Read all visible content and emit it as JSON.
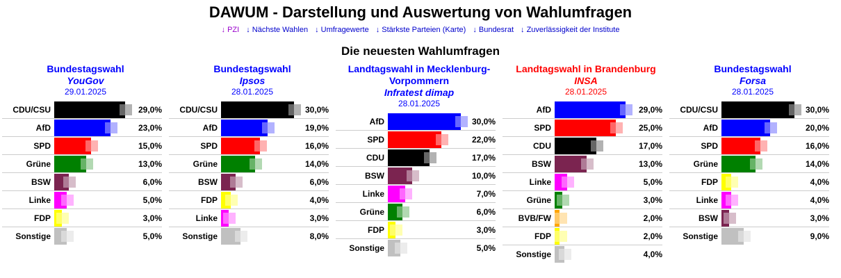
{
  "title": "DAWUM - Darstellung und Auswertung von Wahlumfragen",
  "nav": [
    {
      "label": "↓ PZI",
      "visited": true
    },
    {
      "label": "↓ Nächste Wahlen"
    },
    {
      "label": "↓ Umfragewerte"
    },
    {
      "label": "↓ Stärkste Parteien (Karte)"
    },
    {
      "label": "↓ Bundesrat"
    },
    {
      "label": "↓ Zuverlässigkeit der Institute"
    }
  ],
  "section_title": "Die neuesten Wahlumfragen",
  "colors": {
    "CDU/CSU": "#000000",
    "CDU": "#000000",
    "AfD": "#0000ff",
    "SPD": "#ff0000",
    "Grüne": "#008000",
    "BSW": "#7b2450",
    "Linke": "#ff00ff",
    "FDP": "#ffff00",
    "BVB/FW": "#ffa500",
    "Sonstige": "#c0c0c0"
  },
  "polls": [
    {
      "title": "Bundestagswahl",
      "institute": "YouGov",
      "date": "29.01.2025",
      "color": "blue",
      "rows": [
        [
          "CDU/CSU",
          29,
          "29,0%"
        ],
        [
          "AfD",
          23,
          "23,0%"
        ],
        [
          "SPD",
          15,
          "15,0%"
        ],
        [
          "Grüne",
          13,
          "13,0%"
        ],
        [
          "BSW",
          6,
          "6,0%"
        ],
        [
          "Linke",
          5,
          "5,0%"
        ],
        [
          "FDP",
          3,
          "3,0%"
        ],
        [
          "Sonstige",
          5,
          "5,0%"
        ]
      ]
    },
    {
      "title": "Bundestagswahl",
      "institute": "Ipsos",
      "date": "28.01.2025",
      "color": "blue",
      "rows": [
        [
          "CDU/CSU",
          30,
          "30,0%"
        ],
        [
          "AfD",
          19,
          "19,0%"
        ],
        [
          "SPD",
          16,
          "16,0%"
        ],
        [
          "Grüne",
          14,
          "14,0%"
        ],
        [
          "BSW",
          6,
          "6,0%"
        ],
        [
          "FDP",
          4,
          "4,0%"
        ],
        [
          "Linke",
          3,
          "3,0%"
        ],
        [
          "Sonstige",
          8,
          "8,0%"
        ]
      ]
    },
    {
      "title": "Landtagswahl in Mecklenburg-Vorpommern",
      "institute": "Infratest dimap",
      "date": "28.01.2025",
      "color": "blue",
      "rows": [
        [
          "AfD",
          30,
          "30,0%"
        ],
        [
          "SPD",
          22,
          "22,0%"
        ],
        [
          "CDU",
          17,
          "17,0%"
        ],
        [
          "BSW",
          10,
          "10,0%"
        ],
        [
          "Linke",
          7,
          "7,0%"
        ],
        [
          "Grüne",
          6,
          "6,0%"
        ],
        [
          "FDP",
          3,
          "3,0%"
        ],
        [
          "Sonstige",
          5,
          "5,0%"
        ]
      ]
    },
    {
      "title": "Landtagswahl in Brandenburg",
      "institute": "INSA",
      "date": "28.01.2025",
      "color": "red",
      "rows": [
        [
          "AfD",
          29,
          "29,0%"
        ],
        [
          "SPD",
          25,
          "25,0%"
        ],
        [
          "CDU",
          17,
          "17,0%"
        ],
        [
          "BSW",
          13,
          "13,0%"
        ],
        [
          "Linke",
          5,
          "5,0%"
        ],
        [
          "Grüne",
          3,
          "3,0%"
        ],
        [
          "BVB/FW",
          2,
          "2,0%"
        ],
        [
          "FDP",
          2,
          "2,0%"
        ],
        [
          "Sonstige",
          4,
          "4,0%"
        ]
      ]
    },
    {
      "title": "Bundestagswahl",
      "institute": "Forsa",
      "date": "28.01.2025",
      "color": "blue",
      "rows": [
        [
          "CDU/CSU",
          30,
          "30,0%"
        ],
        [
          "AfD",
          20,
          "20,0%"
        ],
        [
          "SPD",
          16,
          "16,0%"
        ],
        [
          "Grüne",
          14,
          "14,0%"
        ],
        [
          "FDP",
          4,
          "4,0%"
        ],
        [
          "Linke",
          4,
          "4,0%"
        ],
        [
          "BSW",
          3,
          "3,0%"
        ],
        [
          "Sonstige",
          9,
          "9,0%"
        ]
      ]
    }
  ]
}
